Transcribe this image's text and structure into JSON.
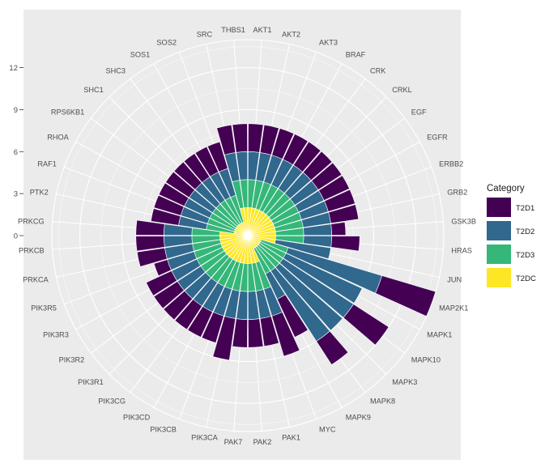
{
  "chart_data": {
    "type": "polar-stacked-bar",
    "title": "",
    "xlabel": "",
    "ylabel": "",
    "ylim": [
      0,
      14
    ],
    "yticks": [
      0,
      3,
      6,
      9,
      12
    ],
    "grid": true,
    "legend": {
      "title": "Category",
      "position": "right",
      "entries": [
        "T2D1",
        "T2D2",
        "T2D3",
        "T2DC"
      ]
    },
    "colors": {
      "T2D1": "#440154",
      "T2D2": "#31688E",
      "T2D3": "#35B779",
      "T2DC": "#FDE725",
      "panel_bg": "#EBEBEB",
      "grid": "#FFFFFF",
      "bar_edge": "#FFFFFF"
    },
    "categories": [
      "AKT1",
      "AKT2",
      "AKT3",
      "BRAF",
      "CRK",
      "CRKL",
      "EGF",
      "EGFR",
      "ERBB2",
      "GRB2",
      "GSK3B",
      "HRAS",
      "JUN",
      "MAP2K1",
      "MAPK1",
      "MAPK10",
      "MAPK3",
      "MAPK8",
      "MAPK9",
      "MYC",
      "PAK1",
      "PAK2",
      "PAK7",
      "PIK3CA",
      "PIK3CB",
      "PIK3CD",
      "PIK3CG",
      "PIK3R1",
      "PIK3R2",
      "PIK3R3",
      "PIK3R5",
      "PRKCA",
      "PRKCB",
      "PRKCG",
      "PTK2",
      "RAF1",
      "RHOA",
      "RPS6KB1",
      "SHC1",
      "SHC3",
      "SOS1",
      "SOS2",
      "SRC",
      "THBS1"
    ],
    "series": [
      {
        "name": "T2DC",
        "values": [
          2,
          2,
          2,
          2,
          2,
          2,
          2,
          2,
          2,
          2,
          2,
          2,
          2,
          1,
          1,
          1,
          1,
          1,
          1,
          2,
          2,
          2,
          2,
          2,
          2,
          2,
          2,
          2,
          2,
          2,
          2,
          2,
          2,
          2,
          1,
          1,
          1,
          1,
          1,
          1,
          1,
          1,
          2,
          2
        ]
      },
      {
        "name": "T2D3",
        "values": [
          2,
          2,
          2,
          2,
          2,
          2,
          2,
          2,
          2,
          2,
          2,
          2,
          0,
          2,
          2,
          2,
          2,
          2,
          2,
          2,
          2,
          2,
          2,
          2,
          2,
          2,
          2,
          2,
          2,
          2,
          2,
          2,
          2,
          2,
          2,
          2,
          2,
          2,
          2,
          2,
          2,
          2,
          2,
          2
        ]
      },
      {
        "name": "T2D2",
        "values": [
          2,
          2,
          2,
          2,
          2,
          2,
          2,
          2,
          2,
          2,
          2,
          2,
          4,
          7,
          6,
          6,
          6,
          6,
          2,
          2,
          2,
          2,
          2,
          2,
          2,
          2,
          2,
          2,
          2,
          2,
          2,
          2,
          2,
          2,
          2,
          2,
          2,
          2,
          2,
          2,
          2,
          2,
          2,
          2
        ]
      },
      {
        "name": "T2D1",
        "values": [
          2,
          2,
          2,
          2,
          2,
          2,
          2,
          2,
          2,
          2,
          1,
          2,
          0,
          4,
          0,
          3,
          0,
          2,
          3,
          3,
          2,
          2,
          2,
          3,
          2,
          2,
          2,
          2,
          2,
          2,
          1,
          2,
          2,
          2,
          2,
          2,
          2,
          2,
          2,
          2,
          2,
          2,
          2,
          2
        ]
      }
    ]
  }
}
